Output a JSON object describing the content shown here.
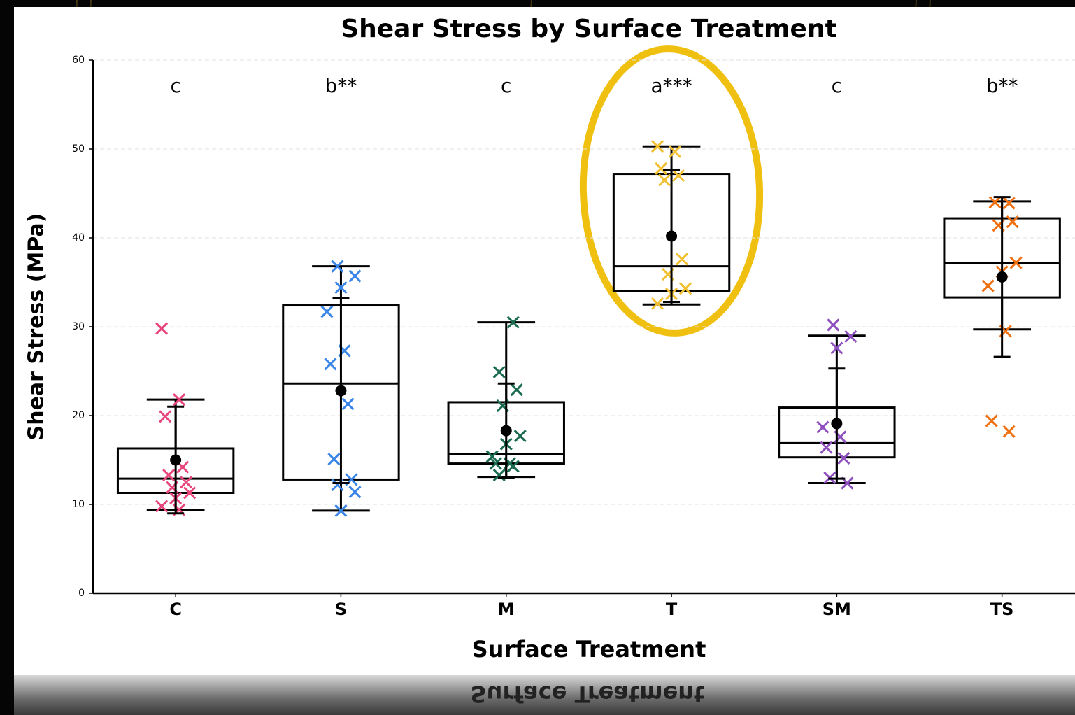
{
  "chart_data": {
    "type": "box",
    "title": "Shear Stress by Surface Treatment",
    "x_label": "Surface Treatment",
    "y_label": "Shear Stress (MPa)",
    "categories": [
      "C",
      "S",
      "M",
      "T",
      "SM",
      "TS"
    ],
    "colors": [
      "#e8457a",
      "#3a86e8",
      "#1a6b50",
      "#f0c030",
      "#8e4fbf",
      "#f07010"
    ],
    "group_labels": [
      "c",
      "b**",
      "c",
      "a***",
      "c",
      "b**"
    ],
    "ylim": [
      0,
      60
    ],
    "yticks": [
      0,
      10,
      20,
      30,
      40,
      50,
      60
    ],
    "grid": true,
    "boxes": [
      {
        "whislo": 9.4,
        "q1": 11.3,
        "med": 12.9,
        "q3": 16.3,
        "whishi": 21.8,
        "mean": 15.0,
        "err": 6.0
      },
      {
        "whislo": 9.3,
        "q1": 12.8,
        "med": 23.6,
        "q3": 32.4,
        "whishi": 36.8,
        "mean": 22.8,
        "err": 10.4
      },
      {
        "whislo": 13.1,
        "q1": 14.6,
        "med": 15.7,
        "q3": 21.5,
        "whishi": 30.5,
        "mean": 18.3,
        "err": 5.3
      },
      {
        "whislo": 32.5,
        "q1": 34.0,
        "med": 36.8,
        "q3": 47.2,
        "whishi": 50.3,
        "mean": 40.2,
        "err": 7.4
      },
      {
        "whislo": 12.4,
        "q1": 15.3,
        "med": 16.9,
        "q3": 20.9,
        "whishi": 29.0,
        "mean": 19.1,
        "err": 6.2
      },
      {
        "whislo": 29.7,
        "q1": 33.3,
        "med": 37.2,
        "q3": 42.2,
        "whishi": 44.1,
        "mean": 35.6,
        "err": 9.0
      }
    ],
    "points": [
      [
        29.8,
        21.8,
        19.9,
        14.2,
        13.3,
        12.5,
        11.9,
        11.3,
        10.7,
        9.8,
        9.4
      ],
      [
        36.8,
        35.7,
        34.4,
        31.7,
        27.3,
        25.8,
        21.3,
        15.1,
        12.8,
        12.2,
        11.4,
        9.3
      ],
      [
        30.5,
        24.9,
        22.9,
        21.1,
        17.7,
        16.8,
        15.4,
        14.6,
        14.6,
        14.3,
        13.3
      ],
      [
        50.3,
        49.7,
        47.8,
        47.0,
        46.5,
        37.6,
        35.9,
        34.3,
        33.7,
        32.6
      ],
      [
        30.2,
        28.9,
        27.6,
        18.7,
        17.6,
        16.4,
        15.2,
        13.0,
        12.4
      ],
      [
        43.9,
        44.0,
        41.8,
        41.4,
        37.2,
        36.2,
        34.6,
        29.5,
        19.4,
        18.2
      ]
    ]
  }
}
